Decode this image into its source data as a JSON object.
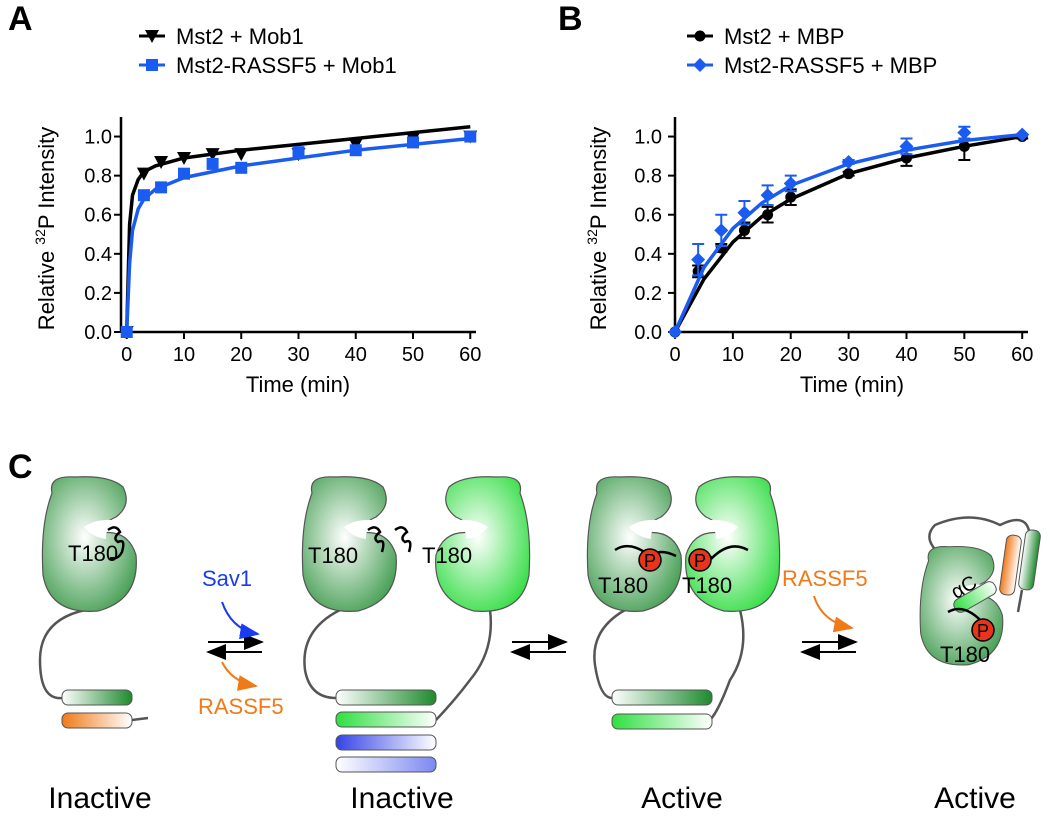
{
  "chart_data": [
    {
      "panel": "A",
      "type": "line",
      "xlabel": "Time (min)",
      "ylabel_parts": [
        "Relative",
        "32",
        "P Intensity"
      ],
      "xlim": [
        -1,
        61
      ],
      "xticks": [
        0,
        10,
        20,
        30,
        40,
        50,
        60
      ],
      "ylim": [
        0,
        1.1
      ],
      "yticks": [
        {
          "value": 0,
          "label": "0.0"
        },
        0.2,
        0.4,
        0.6,
        0.8,
        {
          "value": 1,
          "label": "1.0"
        }
      ],
      "series": [
        {
          "name": "Mst2 + Mob1",
          "color": "#000000",
          "marker": "triangle-down",
          "x": [
            0,
            3,
            6,
            10,
            15,
            20,
            30,
            40,
            50,
            60
          ],
          "values": [
            0,
            0.81,
            0.87,
            0.89,
            0.91,
            0.91,
            0.91,
            0.96,
            0.99,
            1.0
          ],
          "curve_x": [
            0,
            0.5,
            1,
            2,
            3,
            5,
            10,
            20,
            30,
            40,
            50,
            60
          ],
          "curve_y": [
            0,
            0.55,
            0.7,
            0.78,
            0.82,
            0.85,
            0.89,
            0.93,
            0.96,
            0.99,
            1.02,
            1.05
          ]
        },
        {
          "name": "Mst2-RASSF5 + Mob1",
          "color": "#1a5cf0",
          "marker": "square",
          "x": [
            0,
            3,
            6,
            10,
            15,
            20,
            30,
            40,
            50,
            60
          ],
          "values": [
            0,
            0.7,
            0.74,
            0.81,
            0.86,
            0.84,
            0.92,
            0.93,
            0.97,
            1.0
          ],
          "curve_x": [
            0,
            0.5,
            1,
            2,
            3,
            5,
            10,
            20,
            30,
            40,
            50,
            60
          ],
          "curve_y": [
            0,
            0.35,
            0.52,
            0.63,
            0.68,
            0.73,
            0.79,
            0.85,
            0.89,
            0.93,
            0.96,
            0.99
          ]
        }
      ]
    },
    {
      "panel": "B",
      "type": "line",
      "xlabel": "Time (min)",
      "ylabel_parts": [
        "Relative",
        "32",
        "P Intensity"
      ],
      "xlim": [
        0,
        61
      ],
      "xticks": [
        0,
        10,
        20,
        30,
        40,
        50,
        60
      ],
      "ylim": [
        0,
        1.1
      ],
      "yticks": [
        {
          "value": 0,
          "label": "0.0"
        },
        0.2,
        0.4,
        0.6,
        0.8,
        {
          "value": 1,
          "label": "1.0"
        }
      ],
      "series": [
        {
          "name": "Mst2 + MBP",
          "color": "#000000",
          "marker": "circle",
          "x": [
            0,
            4,
            8,
            12,
            16,
            20,
            30,
            40,
            50,
            60
          ],
          "values": [
            0,
            0.31,
            0.43,
            0.52,
            0.6,
            0.69,
            0.81,
            0.89,
            0.95,
            1.0
          ],
          "errors": [
            0,
            0.03,
            0.02,
            0.04,
            0.04,
            0.04,
            0.01,
            0.04,
            0.07,
            0.01
          ],
          "curve_x": [
            0,
            5,
            10,
            15,
            20,
            30,
            40,
            50,
            60
          ],
          "curve_y": [
            0,
            0.27,
            0.46,
            0.59,
            0.68,
            0.81,
            0.89,
            0.95,
            1.0
          ]
        },
        {
          "name": "Mst2-RASSF5 + MBP",
          "color": "#1a5cf0",
          "marker": "diamond",
          "x": [
            0,
            4,
            8,
            12,
            16,
            20,
            30,
            40,
            50,
            60
          ],
          "values": [
            0,
            0.37,
            0.52,
            0.61,
            0.7,
            0.76,
            0.87,
            0.95,
            1.02,
            1.01
          ],
          "errors": [
            0,
            0.08,
            0.08,
            0.06,
            0.05,
            0.04,
            0.01,
            0.04,
            0.03,
            0
          ],
          "curve_x": [
            0,
            5,
            10,
            15,
            20,
            30,
            40,
            50,
            60
          ],
          "curve_y": [
            0,
            0.33,
            0.53,
            0.66,
            0.75,
            0.86,
            0.93,
            0.98,
            1.01
          ]
        }
      ]
    }
  ],
  "diagram": {
    "panel": "C",
    "stages": [
      {
        "state": "Inactive",
        "sites": [
          "T180"
        ]
      },
      {
        "state": "Inactive",
        "sites": [
          "T180",
          "T180"
        ]
      },
      {
        "state": "Active",
        "sites": [
          "T180",
          "T180"
        ],
        "phospho": [
          "P",
          "P"
        ]
      },
      {
        "state": "Active",
        "sites": [
          "T180"
        ],
        "phospho": [
          "P"
        ],
        "helix": "αC"
      }
    ],
    "arrow_labels": [
      "Sav1",
      "RASSF5",
      "RASSF5"
    ]
  }
}
